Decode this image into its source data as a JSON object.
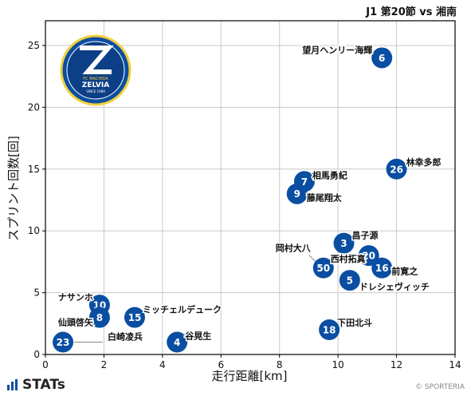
{
  "header": {
    "title": "J1 第20節 vs 湘南"
  },
  "footer": {
    "brand": "STATs",
    "credit": "© SPORTERIA"
  },
  "logo": {
    "text_top": "FC MACHIDA",
    "text_main": "ZELVIA",
    "text_bottom": "SINCE 1989"
  },
  "colors": {
    "point": "#0a4ea2",
    "point_text": "#ffffff",
    "grid": "#c8c8c8",
    "axis": "#000000"
  },
  "chart_data": {
    "type": "scatter",
    "title": "J1 第20節 vs 湘南",
    "xlabel": "走行距離[km]",
    "ylabel": "スプリント回数[回]",
    "xlim": [
      0,
      14
    ],
    "ylim": [
      0,
      27
    ],
    "xticks": [
      0,
      2,
      4,
      6,
      8,
      10,
      12,
      14
    ],
    "yticks": [
      0,
      5,
      10,
      15,
      20,
      25
    ],
    "grid": true,
    "points": [
      {
        "number": "6",
        "name": "望月ヘンリー海輝",
        "x": 11.5,
        "y": 24
      },
      {
        "number": "26",
        "name": "林幸多郎",
        "x": 12.0,
        "y": 15
      },
      {
        "number": "7",
        "name": "相馬勇紀",
        "x": 8.85,
        "y": 14
      },
      {
        "number": "9",
        "name": "藤尾翔太",
        "x": 8.6,
        "y": 13
      },
      {
        "number": "3",
        "name": "昌子源",
        "x": 10.2,
        "y": 9
      },
      {
        "number": "20",
        "name": "西村拓真",
        "x": 11.05,
        "y": 8
      },
      {
        "number": "50",
        "name": "岡村大八",
        "x": 9.5,
        "y": 7
      },
      {
        "number": "16",
        "name": "前寛之",
        "x": 11.5,
        "y": 7
      },
      {
        "number": "5",
        "name": "ドレシェヴィッチ",
        "x": 10.4,
        "y": 6
      },
      {
        "number": "10",
        "name": "ナサンホ",
        "x": 1.85,
        "y": 4
      },
      {
        "number": "8",
        "name": "仙頭啓矢",
        "x": 1.85,
        "y": 3
      },
      {
        "number": "15",
        "name": "ミッチェルデューク",
        "x": 3.05,
        "y": 3
      },
      {
        "number": "18",
        "name": "下田北斗",
        "x": 9.7,
        "y": 2
      },
      {
        "number": "23",
        "name": "白崎凌兵",
        "x": 0.6,
        "y": 1
      },
      {
        "number": "4",
        "name": "谷晃生",
        "x": 4.5,
        "y": 1
      }
    ]
  }
}
